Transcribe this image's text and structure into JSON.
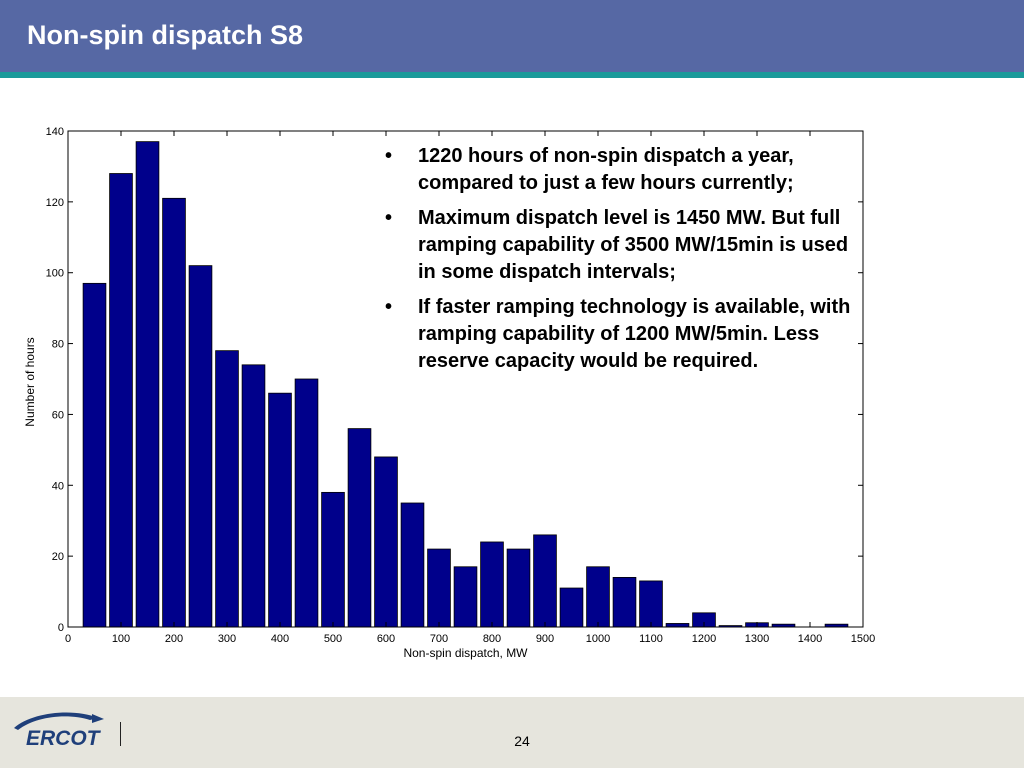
{
  "slide": {
    "title": "Non-spin dispatch S8",
    "page_number": "24",
    "logo_text": "ERCOT",
    "bullets": [
      "1220 hours of non-spin dispatch a year, compared to just a few hours currently;",
      "Maximum dispatch level is 1450 MW. But full ramping capability of 3500 MW/15min is used in some dispatch intervals;",
      "If faster ramping technology is available, with ramping capability of 1200 MW/5min. Less reserve capacity would be required."
    ]
  },
  "colors": {
    "header": "#5668a4",
    "header_stripe": "#1b9a9a",
    "bar_fill": "#00008b",
    "footer": "#e6e5dd",
    "logo": "#1f3f7a"
  },
  "chart_data": {
    "type": "bar",
    "xlabel": "Non-spin dispatch, MW",
    "ylabel": "Number of hours",
    "xlim": [
      0,
      1500
    ],
    "ylim": [
      0,
      140
    ],
    "xticks": [
      0,
      100,
      200,
      300,
      400,
      500,
      600,
      700,
      800,
      900,
      1000,
      1100,
      1200,
      1300,
      1400,
      1500
    ],
    "yticks": [
      0,
      20,
      40,
      60,
      80,
      100,
      120,
      140
    ],
    "bin_width": 50,
    "x": [
      50,
      100,
      150,
      200,
      250,
      300,
      350,
      400,
      450,
      500,
      550,
      600,
      650,
      700,
      750,
      800,
      850,
      900,
      950,
      1000,
      1050,
      1100,
      1150,
      1200,
      1250,
      1300,
      1350,
      1400,
      1450
    ],
    "values": [
      97,
      128,
      137,
      121,
      102,
      78,
      74,
      66,
      70,
      38,
      56,
      48,
      35,
      22,
      17,
      24,
      22,
      26,
      11,
      17,
      14,
      13,
      1,
      4,
      0.4,
      1.2,
      0.8,
      0,
      0.8
    ],
    "grid": false,
    "legend": "none"
  }
}
